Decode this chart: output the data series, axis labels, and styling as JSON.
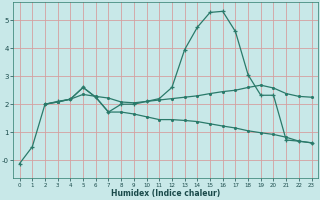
{
  "xlabel": "Humidex (Indice chaleur)",
  "background_color": "#c8e8e8",
  "grid_color": "#d4a0a0",
  "line_color": "#2a7a6a",
  "xlim": [
    -0.5,
    23.5
  ],
  "ylim": [
    -0.65,
    5.65
  ],
  "xticks": [
    0,
    1,
    2,
    3,
    4,
    5,
    6,
    7,
    8,
    9,
    10,
    11,
    12,
    13,
    14,
    15,
    16,
    17,
    18,
    19,
    20,
    21,
    22,
    23
  ],
  "yticks": [
    0,
    1,
    2,
    3,
    4,
    5
  ],
  "ytick_labels": [
    "-0",
    "1",
    "2",
    "3",
    "4",
    "5"
  ],
  "line1_x": [
    0,
    1,
    2,
    3,
    4,
    5,
    6,
    7,
    8,
    9,
    10,
    11,
    12,
    13,
    14,
    15,
    16,
    17,
    18,
    19,
    20,
    21,
    22,
    23
  ],
  "line1_y": [
    -0.12,
    0.48,
    2.0,
    2.1,
    2.18,
    2.6,
    2.25,
    1.72,
    2.0,
    2.0,
    2.1,
    2.2,
    2.6,
    3.95,
    4.75,
    5.28,
    5.32,
    4.6,
    3.05,
    2.32,
    2.32,
    0.72,
    0.68,
    0.62
  ],
  "line2_x": [
    2,
    3,
    4,
    5,
    6,
    7,
    8,
    9,
    10,
    11,
    12,
    13,
    14,
    15,
    16,
    17,
    18,
    19,
    20,
    21,
    22,
    23
  ],
  "line2_y": [
    2.0,
    2.08,
    2.18,
    2.35,
    2.28,
    2.22,
    2.08,
    2.05,
    2.1,
    2.15,
    2.2,
    2.25,
    2.3,
    2.38,
    2.45,
    2.5,
    2.6,
    2.68,
    2.58,
    2.38,
    2.28,
    2.25
  ],
  "line3_x": [
    2,
    3,
    4,
    5,
    6,
    7,
    8,
    9,
    10,
    11,
    12,
    13,
    14,
    15,
    16,
    17,
    18,
    19,
    20,
    21,
    22,
    23
  ],
  "line3_y": [
    2.0,
    2.08,
    2.18,
    2.6,
    2.25,
    1.72,
    1.72,
    1.65,
    1.55,
    1.45,
    1.45,
    1.42,
    1.38,
    1.3,
    1.22,
    1.15,
    1.05,
    0.98,
    0.92,
    0.82,
    0.68,
    0.62
  ]
}
